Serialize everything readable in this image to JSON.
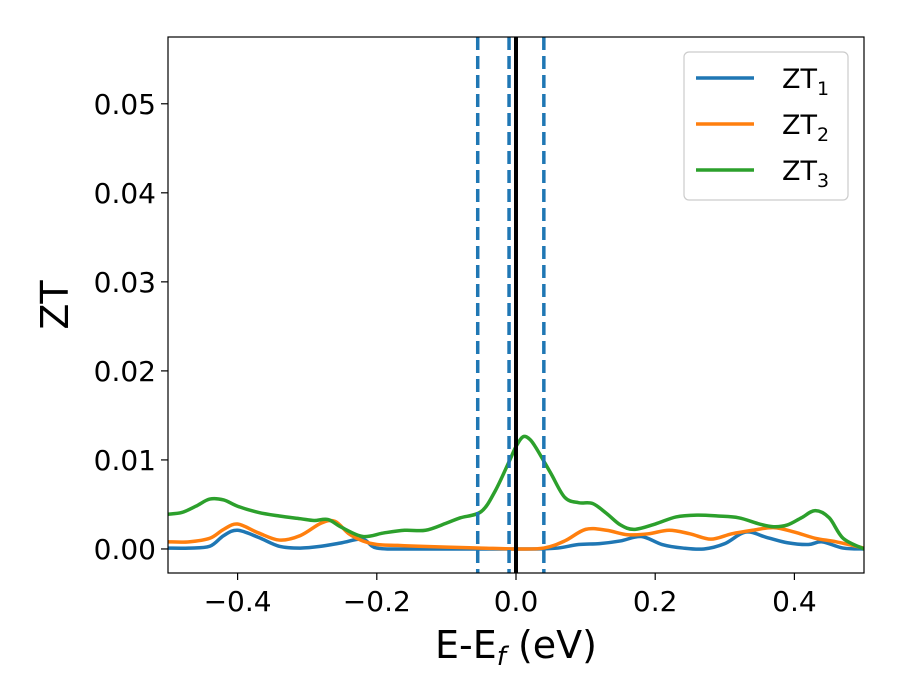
{
  "chart_data": {
    "type": "line",
    "xlabel": "E-E",
    "xlabel_sub": "f",
    "xlabel_unit": " (eV)",
    "ylabel": "ZT",
    "xlim": [
      -0.5,
      0.5
    ],
    "ylim": [
      -0.0027,
      0.0575
    ],
    "xticks": [
      -0.4,
      -0.2,
      0.0,
      0.2,
      0.4
    ],
    "xtick_labels": [
      "−0.4",
      "−0.2",
      "0.0",
      "0.2",
      "0.4"
    ],
    "yticks": [
      0.0,
      0.01,
      0.02,
      0.03,
      0.04,
      0.05
    ],
    "ytick_labels": [
      "0.00",
      "0.01",
      "0.02",
      "0.03",
      "0.04",
      "0.05"
    ],
    "grid": false,
    "legend_position": "top-right",
    "vlines": [
      {
        "x": -0.055,
        "style": "dashed",
        "color": "#1f77b4"
      },
      {
        "x": -0.01,
        "style": "dashed",
        "color": "#1f77b4"
      },
      {
        "x": 0.04,
        "style": "dashed",
        "color": "#1f77b4"
      },
      {
        "x": 0.0,
        "style": "solid",
        "color": "#000000"
      }
    ],
    "series": [
      {
        "name": "ZT",
        "name_sub": "1",
        "color": "#1f77b4",
        "x": [
          -0.5,
          -0.47,
          -0.44,
          -0.42,
          -0.4,
          -0.37,
          -0.34,
          -0.31,
          -0.28,
          -0.25,
          -0.22,
          -0.2,
          -0.15,
          -0.1,
          -0.05,
          0.0,
          0.03,
          0.06,
          0.09,
          0.12,
          0.15,
          0.18,
          0.21,
          0.24,
          0.27,
          0.3,
          0.33,
          0.36,
          0.39,
          0.42,
          0.44,
          0.47,
          0.5
        ],
        "y": [
          0.0001,
          0.0001,
          0.0003,
          0.0015,
          0.0021,
          0.0013,
          0.0003,
          0.0001,
          0.0003,
          0.0007,
          0.0011,
          0.0001,
          0.0,
          0.0,
          0.0,
          0.0,
          0.0,
          0.0001,
          0.0005,
          0.0006,
          0.0009,
          0.0014,
          0.0005,
          0.0001,
          0.0,
          0.0006,
          0.0019,
          0.0013,
          0.0007,
          0.0005,
          0.0008,
          0.0001,
          0.0
        ]
      },
      {
        "name": "ZT",
        "name_sub": "2",
        "color": "#ff7f0e",
        "x": [
          -0.5,
          -0.47,
          -0.44,
          -0.42,
          -0.4,
          -0.37,
          -0.34,
          -0.31,
          -0.28,
          -0.26,
          -0.24,
          -0.22,
          -0.2,
          -0.17,
          -0.14,
          -0.1,
          -0.05,
          0.0,
          0.04,
          0.07,
          0.1,
          0.13,
          0.16,
          0.19,
          0.22,
          0.25,
          0.28,
          0.31,
          0.34,
          0.37,
          0.4,
          0.43,
          0.46,
          0.5
        ],
        "y": [
          0.0008,
          0.0008,
          0.0012,
          0.0022,
          0.0028,
          0.0018,
          0.001,
          0.0015,
          0.0029,
          0.0031,
          0.0017,
          0.0009,
          0.0005,
          0.0004,
          0.0003,
          0.0002,
          0.0001,
          0.0,
          0.0001,
          0.0009,
          0.0022,
          0.0021,
          0.0016,
          0.0017,
          0.0021,
          0.0017,
          0.0011,
          0.0017,
          0.0021,
          0.0024,
          0.0019,
          0.0012,
          0.0008,
          0.0001
        ]
      },
      {
        "name": "ZT",
        "name_sub": "3",
        "color": "#2ca02c",
        "x": [
          -0.5,
          -0.48,
          -0.46,
          -0.44,
          -0.42,
          -0.4,
          -0.37,
          -0.34,
          -0.31,
          -0.29,
          -0.27,
          -0.25,
          -0.22,
          -0.19,
          -0.16,
          -0.13,
          -0.1,
          -0.08,
          -0.05,
          -0.03,
          -0.01,
          0.0,
          0.01,
          0.02,
          0.03,
          0.05,
          0.07,
          0.09,
          0.11,
          0.13,
          0.15,
          0.17,
          0.2,
          0.23,
          0.26,
          0.29,
          0.32,
          0.35,
          0.37,
          0.39,
          0.41,
          0.43,
          0.45,
          0.47,
          0.5
        ],
        "y": [
          0.0039,
          0.0041,
          0.0048,
          0.0056,
          0.0055,
          0.0048,
          0.0041,
          0.0037,
          0.0034,
          0.0032,
          0.0033,
          0.0024,
          0.0014,
          0.0018,
          0.0021,
          0.0021,
          0.0029,
          0.0035,
          0.0042,
          0.0065,
          0.0098,
          0.0115,
          0.0126,
          0.0123,
          0.0112,
          0.0085,
          0.0058,
          0.0052,
          0.0051,
          0.004,
          0.0027,
          0.0022,
          0.0028,
          0.0036,
          0.0038,
          0.0037,
          0.0035,
          0.0028,
          0.0025,
          0.0027,
          0.0035,
          0.0043,
          0.0035,
          0.0012,
          0.0
        ]
      }
    ]
  }
}
